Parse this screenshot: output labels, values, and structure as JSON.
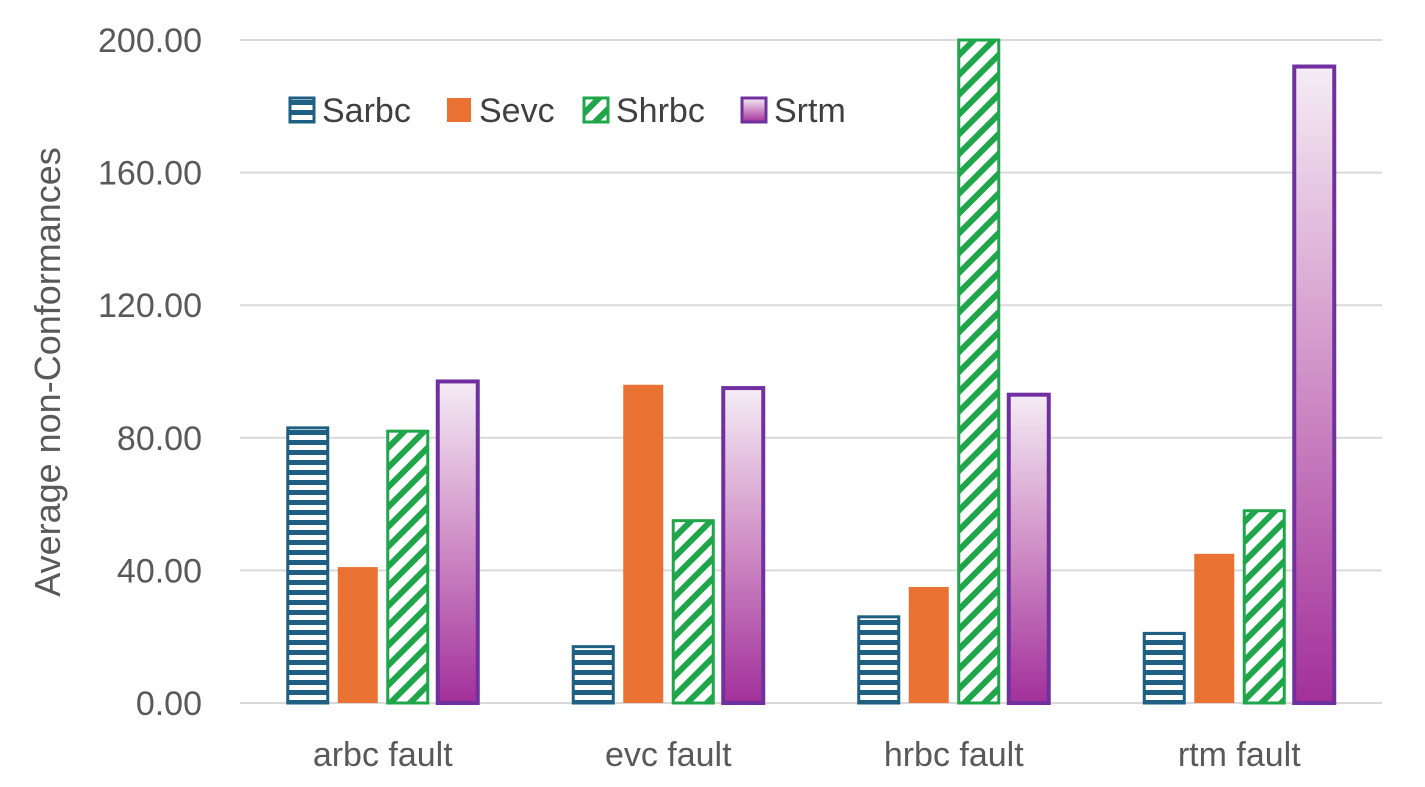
{
  "chart_data": {
    "type": "bar",
    "title": "",
    "xlabel": "",
    "ylabel": "Average non-Conformances",
    "ylim": [
      0,
      200
    ],
    "yticks": [
      "0.00",
      "40.00",
      "80.00",
      "120.00",
      "160.00",
      "200.00"
    ],
    "ytick_values": [
      0,
      40,
      80,
      120,
      160,
      200
    ],
    "grid": true,
    "legend_position": "top-left",
    "categories": [
      "arbc fault",
      "evc fault",
      "hrbc fault",
      "rtm fault"
    ],
    "series": [
      {
        "name": "Sarbc",
        "values": [
          83,
          17,
          26,
          21
        ],
        "color": "#1f5f82",
        "pattern": "horizontal-stripes"
      },
      {
        "name": "Sevc",
        "values": [
          41,
          96,
          35,
          45
        ],
        "color": "#e97132",
        "pattern": "solid"
      },
      {
        "name": "Shrbc",
        "values": [
          82,
          55,
          200,
          58
        ],
        "color": "#1fa64a",
        "pattern": "diagonal-stripes"
      },
      {
        "name": "Srtm",
        "values": [
          97,
          95,
          93,
          192
        ],
        "color": "#7030a0",
        "pattern": "gradient"
      }
    ]
  }
}
